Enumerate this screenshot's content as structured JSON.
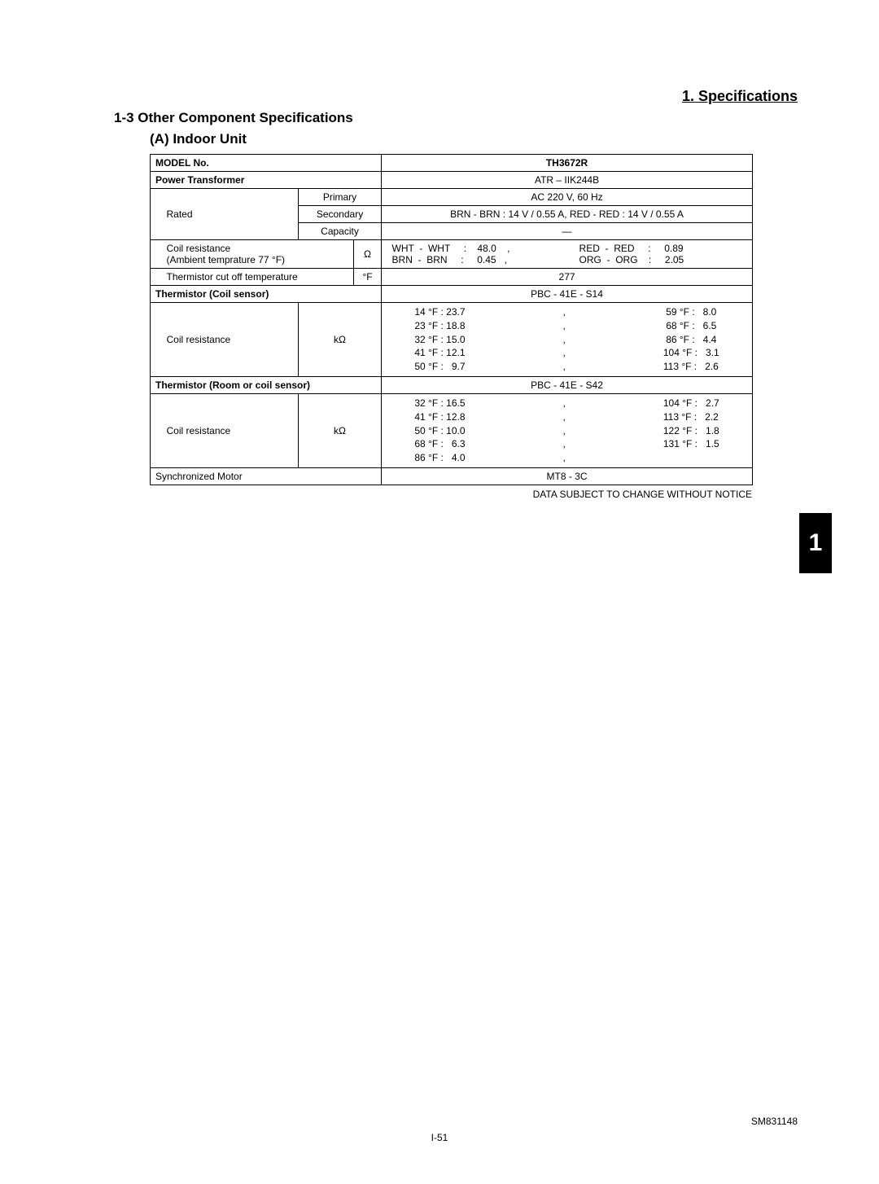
{
  "header": {
    "section_title": "1. Specifications",
    "subsection": "1-3  Other Component Specifications",
    "unit_heading": "(A)  Indoor Unit"
  },
  "table": {
    "model_no_label": "MODEL No.",
    "model_no_value": "TH3672R",
    "power_transformer_label": "Power Transformer",
    "power_transformer_value": "ATR – IIK244B",
    "rated_label": "Rated",
    "primary_label": "Primary",
    "primary_value": "AC 220 V, 60 Hz",
    "secondary_label": "Secondary",
    "secondary_value": "BRN - BRN : 14 V / 0.55 A, RED - RED : 14 V / 0.55 A",
    "capacity_label": "Capacity",
    "capacity_value": "—",
    "coil_res_label1": "Coil resistance",
    "coil_res_label2": "(Ambient temprature 77 °F)",
    "ohm_unit": "Ω",
    "coil_res_line1_left": "WHT  -  WHT     :    48.0    ,",
    "coil_res_line1_right": "RED  -  RED     :     0.89",
    "coil_res_line2_left": "BRN  -  BRN     :     0.45   ,",
    "coil_res_line2_right": "ORG  -  ORG    :     2.05",
    "therm_cutoff_label": "Thermistor cut off temperature",
    "degF_unit": "°F",
    "therm_cutoff_value": "277",
    "therm_coil_label": "Thermistor (Coil sensor)",
    "therm_coil_value": "PBC - 41E - S14",
    "coil_res2_label": "Coil resistance",
    "kohm_unit": "kΩ",
    "coil_sensor_left": [
      "14 °F : 23.7",
      "23 °F : 18.8",
      "32 °F : 15.0",
      "41 °F : 12.1",
      "50 °F :   9.7"
    ],
    "coil_sensor_mid": [
      ",",
      ",",
      ",",
      ",",
      ","
    ],
    "coil_sensor_right": [
      " 59 °F :   8.0",
      " 68 °F :   6.5",
      " 86 °F :   4.4",
      "104 °F :   3.1",
      "113 °F :   2.6"
    ],
    "therm_room_label": "Thermistor (Room or coil sensor)",
    "therm_room_value": "PBC - 41E - S42",
    "room_sensor_left": [
      "32 °F : 16.5",
      "41 °F : 12.8",
      "50 °F : 10.0",
      "68 °F :   6.3",
      "86 °F :   4.0"
    ],
    "room_sensor_mid": [
      ",",
      ",",
      ",",
      ",",
      ","
    ],
    "room_sensor_right": [
      "104 °F :   2.7",
      "113 °F :   2.2",
      "122 °F :   1.8",
      "131 °F :   1.5",
      ""
    ],
    "sync_motor_label": "Synchronized Motor",
    "sync_motor_value": "MT8 - 3C"
  },
  "footnote": "DATA SUBJECT TO CHANGE WITHOUT NOTICE",
  "side_tab": "1",
  "footer_center": "I-51",
  "footer_right": "SM831148"
}
